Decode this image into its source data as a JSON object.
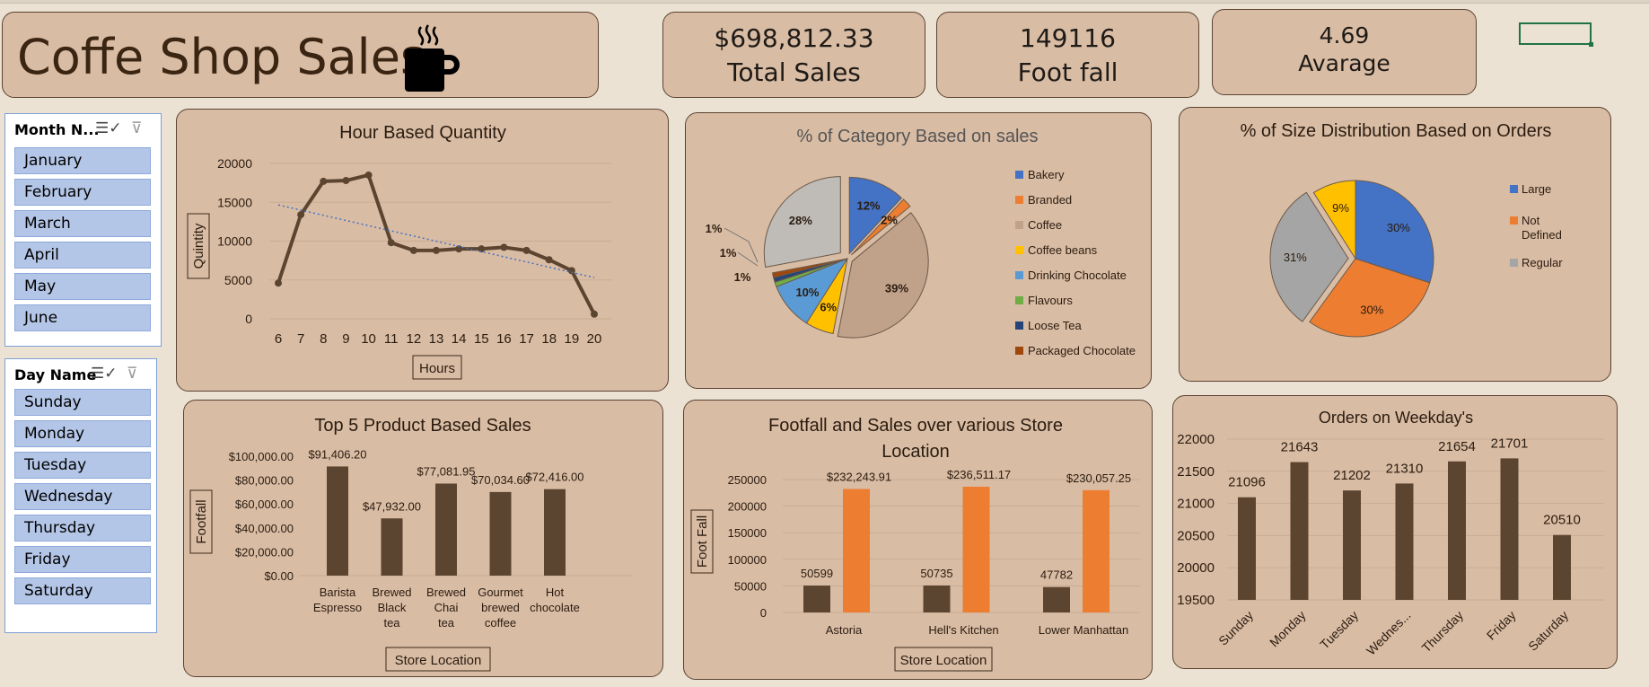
{
  "title": "Coffe Shop Sales",
  "kpis": {
    "total_sales_value": "$698,812.33",
    "total_sales_label": "Total Sales",
    "footfall_value": "149116",
    "footfall_label": "Foot fall",
    "average_value": "4.69",
    "average_label": "Avarage"
  },
  "slicers": {
    "month": {
      "header": "Month N...",
      "items": [
        "January",
        "February",
        "March",
        "April",
        "May",
        "June"
      ]
    },
    "day": {
      "header": "Day Name",
      "items": [
        "Sunday",
        "Monday",
        "Tuesday",
        "Wednesday",
        "Thursday",
        "Friday",
        "Saturday"
      ]
    }
  },
  "colors": {
    "card_bg": "#d9bca4",
    "card_border": "#5b4332",
    "bar_brown": "#5c4530",
    "bar_orange": "#ed7d31",
    "slicer_item": "#b4c6e7"
  },
  "chart_data": [
    {
      "id": "hour",
      "type": "line",
      "title": "Hour Based Quantity",
      "xlabel": "Hours",
      "ylabel": "Quintity",
      "categories": [
        "6",
        "7",
        "8",
        "9",
        "10",
        "11",
        "12",
        "13",
        "14",
        "15",
        "16",
        "17",
        "18",
        "19",
        "20"
      ],
      "series": [
        {
          "values": [
            4600,
            13400,
            17700,
            17800,
            18500,
            9800,
            8800,
            8800,
            9000,
            9000,
            9200,
            8800,
            7600,
            6200,
            600
          ]
        }
      ],
      "trendline": "linear dotted",
      "yticks": [
        0,
        5000,
        10000,
        15000,
        20000
      ],
      "ylim": [
        0,
        20000
      ],
      "grid": true
    },
    {
      "id": "category",
      "type": "pie",
      "title": "% of Category Based on sales",
      "slices": [
        {
          "name": "Bakery",
          "value": 12,
          "label": "12%",
          "color": "#4472c4"
        },
        {
          "name": "Branded",
          "value": 2,
          "label": "2%",
          "color": "#ed7d31"
        },
        {
          "name": "Coffee",
          "value": 39,
          "label": "39%",
          "color": "#c0a18a"
        },
        {
          "name": "Coffee beans",
          "value": 6,
          "label": "6%",
          "color": "#ffc000"
        },
        {
          "name": "Drinking Chocolate",
          "value": 10,
          "label": "10%",
          "color": "#5b9bd5"
        },
        {
          "name": "Flavours",
          "value": 1,
          "label": "1%",
          "color": "#70ad47"
        },
        {
          "name": "Loose Tea",
          "value": 1,
          "label": "1%",
          "color": "#264478"
        },
        {
          "name": "Packaged Chocolate",
          "value": 1,
          "label": "1%",
          "color": "#9e480e"
        },
        {
          "name": "",
          "value": 28,
          "label": "28%",
          "color": "#bfbbb7"
        }
      ],
      "legend": "right"
    },
    {
      "id": "size",
      "type": "pie",
      "title": "% of Size Distribution Based on Orders",
      "slices": [
        {
          "name": "Large",
          "value": 30,
          "label": "30%",
          "color": "#4472c4"
        },
        {
          "name": "Not Defined",
          "value": 30,
          "label": "30%",
          "color": "#ed7d31"
        },
        {
          "name": "Regular",
          "value": 31,
          "label": "31%",
          "color": "#a5a5a5"
        },
        {
          "name": "",
          "value": 9,
          "label": "9%",
          "color": "#ffc000"
        }
      ],
      "legend": "right"
    },
    {
      "id": "products",
      "type": "bar",
      "title": "Top 5 Product Based Sales",
      "xlabel": "Store Location",
      "ylabel": "Footfall",
      "categories": [
        "Barista Espresso",
        "Brewed Black tea",
        "Brewed Chai tea",
        "Gourmet brewed coffee",
        "Hot chocolate"
      ],
      "values": [
        91406.2,
        47932.0,
        77081.95,
        70034.6,
        72416.0
      ],
      "data_labels": [
        "$91,406.20",
        "$47,932.00",
        "$77,081.95",
        "$70,034.60",
        "$72,416.00"
      ],
      "yticks": [
        "$0.00",
        "$20,000.00",
        "$40,000.00",
        "$60,000.00",
        "$80,000.00",
        "$100,000.00"
      ],
      "ylim": [
        0,
        100000
      ]
    },
    {
      "id": "stores",
      "type": "bar",
      "title": "Footfall and Sales over various Store Location",
      "xlabel": "Store Location",
      "ylabel": "Foot Fall",
      "categories": [
        "Astoria",
        "Hell's Kitchen",
        "Lower Manhattan"
      ],
      "series": [
        {
          "values": [
            50599,
            50735,
            47782
          ],
          "labels": [
            "50599",
            "50735",
            "47782"
          ],
          "color": "#5c4530"
        },
        {
          "values": [
            232243.91,
            236511.17,
            230057.25
          ],
          "labels": [
            "$232,243.91",
            "$236,511.17",
            "$230,057.25"
          ],
          "color": "#ed7d31"
        }
      ],
      "yticks": [
        0,
        50000,
        100000,
        150000,
        200000,
        250000
      ],
      "ylim": [
        0,
        250000
      ],
      "grid": true
    },
    {
      "id": "weekday",
      "type": "bar",
      "title": "Orders on Weekday's",
      "categories": [
        "Sunday",
        "Monday",
        "Tuesday",
        "Wednes...",
        "Thursday",
        "Friday",
        "Saturday"
      ],
      "values": [
        21096,
        21643,
        21202,
        21310,
        21654,
        21701,
        20510
      ],
      "yticks": [
        19500,
        20000,
        20500,
        21000,
        21500,
        22000
      ],
      "ylim": [
        19500,
        22000
      ],
      "grid": true
    }
  ]
}
